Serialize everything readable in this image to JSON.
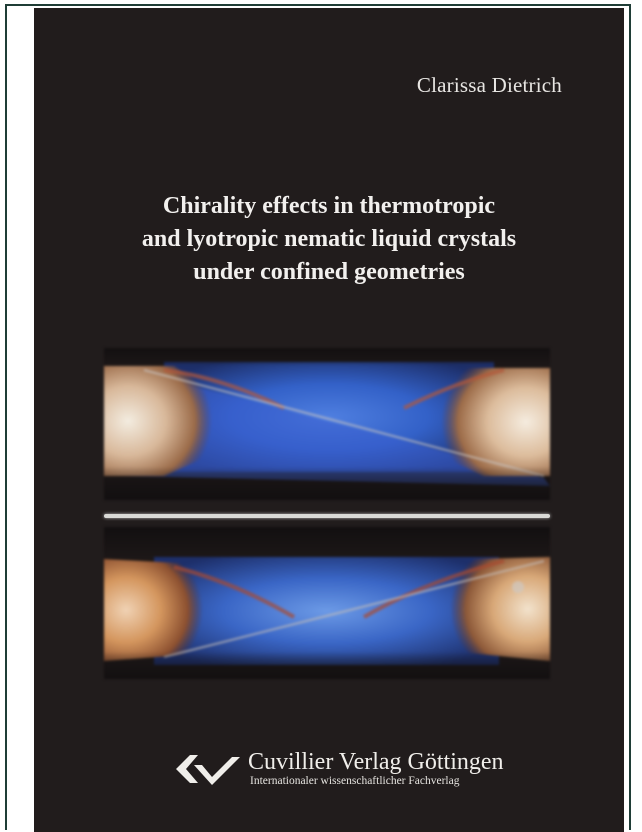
{
  "cover": {
    "author": "Clarissa Dietrich",
    "title_lines": [
      "Chirality effects in thermotropic",
      "and lyotropic nematic liquid crystals",
      "under confined geometries"
    ],
    "background_color": "#211c1c",
    "frame_color": "#1f3d36"
  },
  "image": {
    "panels": [
      "top-micrograph",
      "bottom-micrograph"
    ]
  },
  "publisher": {
    "name": "Cuvillier Verlag Göttingen",
    "subtitle": "Internationaler wissenschaftlicher Fachverlag",
    "logo_icon": "cuvillier-logo-icon"
  }
}
